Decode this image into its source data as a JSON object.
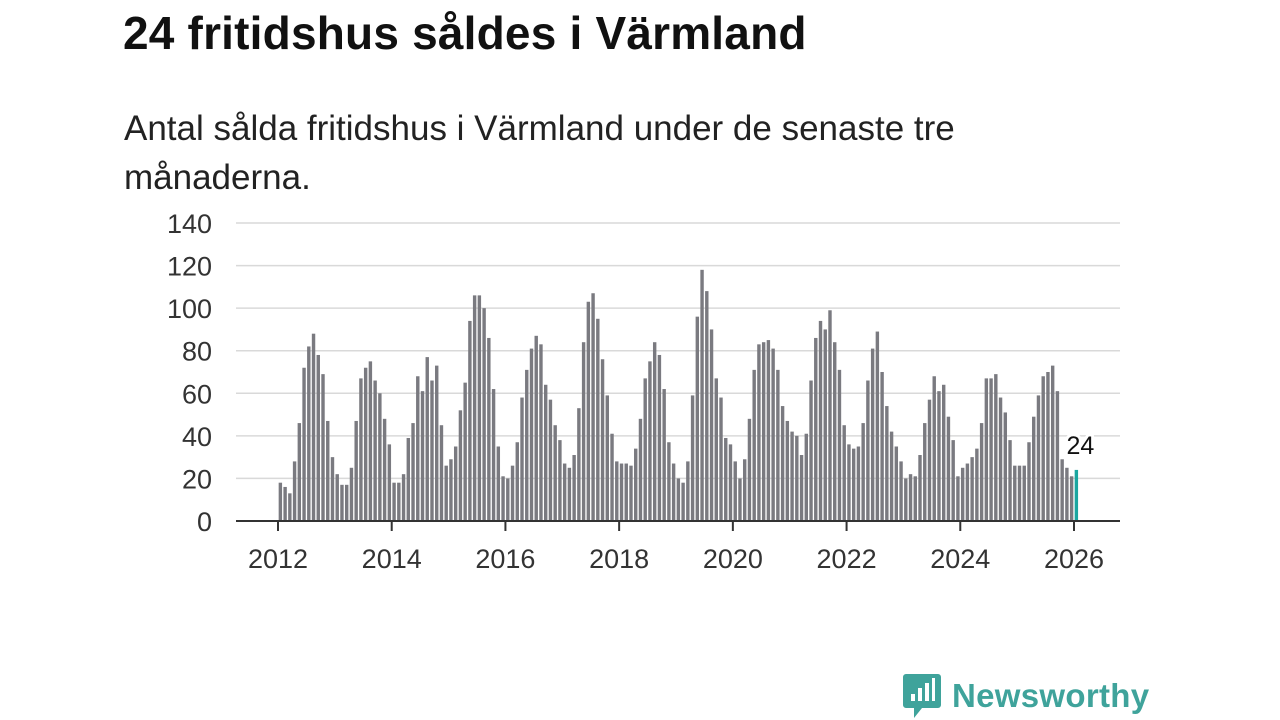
{
  "title": "24 fritidshus såldes i Värmland",
  "subtitle": "Antal sålda fritidshus i Värmland under de senaste tre månaderna.",
  "brand": {
    "name": "Newsworthy",
    "icon": "newsworthy-logo-icon",
    "color": "#3fa39b"
  },
  "chart_data": {
    "type": "bar",
    "title": "24 fritidshus såldes i Värmland",
    "subtitle": "Antal sålda fritidshus i Värmland under de senaste tre månaderna.",
    "xlabel": "",
    "ylabel": "",
    "ylim": [
      0,
      140
    ],
    "yticks": [
      0,
      20,
      40,
      60,
      80,
      100,
      120,
      140
    ],
    "xticks": [
      "2012",
      "2014",
      "2016",
      "2018",
      "2020",
      "2022",
      "2024",
      "2026"
    ],
    "grid": true,
    "bar_color": "#7a7a80",
    "highlight_color": "#1aa6a0",
    "start": "2012-01",
    "frequency": "monthly",
    "values": [
      18,
      16,
      13,
      28,
      46,
      72,
      82,
      88,
      78,
      69,
      47,
      30,
      22,
      17,
      17,
      25,
      47,
      67,
      72,
      75,
      66,
      60,
      48,
      36,
      18,
      18,
      22,
      39,
      46,
      68,
      61,
      77,
      66,
      73,
      45,
      26,
      29,
      35,
      52,
      65,
      94,
      106,
      106,
      100,
      86,
      62,
      35,
      21,
      20,
      26,
      37,
      58,
      71,
      81,
      87,
      83,
      64,
      57,
      45,
      38,
      27,
      25,
      31,
      53,
      84,
      103,
      107,
      95,
      76,
      59,
      41,
      28,
      27,
      27,
      26,
      34,
      48,
      67,
      75,
      84,
      78,
      62,
      37,
      27,
      20,
      18,
      28,
      59,
      96,
      118,
      108,
      90,
      67,
      58,
      39,
      36,
      28,
      20,
      29,
      48,
      71,
      83,
      84,
      85,
      81,
      71,
      54,
      47,
      42,
      40,
      31,
      41,
      66,
      86,
      94,
      90,
      99,
      84,
      71,
      45,
      36,
      34,
      35,
      46,
      66,
      81,
      89,
      70,
      54,
      42,
      35,
      28,
      20,
      22,
      21,
      31,
      46,
      57,
      68,
      61,
      64,
      49,
      38,
      21,
      25,
      27,
      30,
      34,
      46,
      67,
      67,
      69,
      58,
      51,
      38,
      26,
      26,
      26,
      37,
      49,
      59,
      68,
      70,
      73,
      61,
      29,
      25,
      21,
      24
    ],
    "highlight_index": 168,
    "annotation": {
      "label": "24",
      "value": 24
    }
  }
}
